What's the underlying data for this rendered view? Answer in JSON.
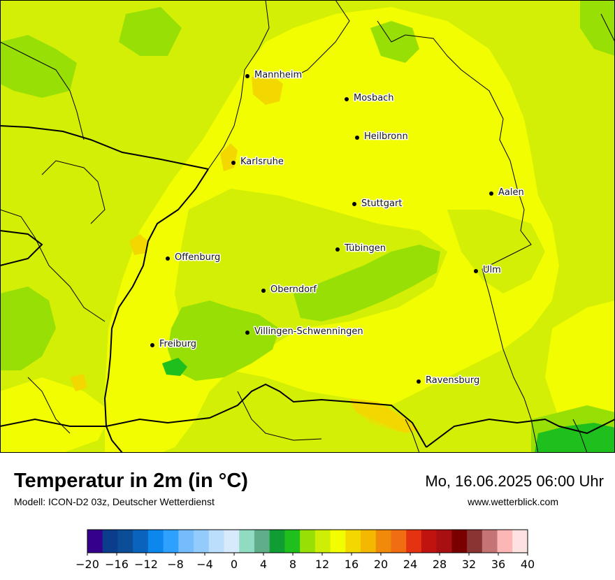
{
  "map": {
    "title": "Temperatur in 2m (in °C)",
    "subtitle": "Modell: ICON-D2 03z, Deutscher Wetterdienst",
    "datetime": "Mo, 16.06.2025 06:00 Uhr",
    "website": "www.wetterblick.com",
    "cities": [
      {
        "name": "Mannheim"
      },
      {
        "name": "Mosbach"
      },
      {
        "name": "Heilbronn"
      },
      {
        "name": "Karlsruhe"
      },
      {
        "name": "Aalen"
      },
      {
        "name": "Stuttgart"
      },
      {
        "name": "Tübingen"
      },
      {
        "name": "Offenburg"
      },
      {
        "name": "Ulm"
      },
      {
        "name": "Oberndorf"
      },
      {
        "name": "Villingen-Schwenningen"
      },
      {
        "name": "Freiburg"
      },
      {
        "name": "Ravensburg"
      }
    ]
  },
  "legend": {
    "ticks": [
      "−20",
      "−16",
      "−12",
      "−8",
      "−4",
      "0",
      "4",
      "8",
      "12",
      "16",
      "20",
      "24",
      "28",
      "32",
      "36",
      "40"
    ],
    "colors": [
      "#34008c",
      "#0a3d8c",
      "#0b4d96",
      "#0a64bd",
      "#0c87ee",
      "#2ea0fd",
      "#75bcfd",
      "#93cbfc",
      "#bcdefd",
      "#d7eafc",
      "#90dbc2",
      "#5fae89",
      "#0f9d34",
      "#1fbf1d",
      "#98df05",
      "#ceef05",
      "#f1fd00",
      "#f3d800",
      "#f4b800",
      "#f1890b",
      "#f06d12",
      "#e53210",
      "#c0120f",
      "#a80f12",
      "#7a0000",
      "#8b3434",
      "#c47474",
      "#fdb6b6",
      "#fde2e2"
    ]
  }
}
